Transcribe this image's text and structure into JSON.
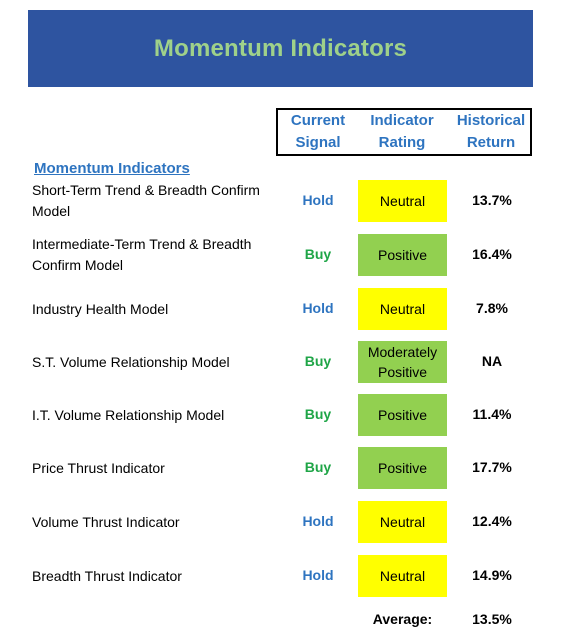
{
  "banner": {
    "title": "Momentum Indicators"
  },
  "headers": {
    "signal": [
      "Current",
      "Signal"
    ],
    "rating": [
      "Indicator",
      "Rating"
    ],
    "return": [
      "Historical",
      "Return"
    ]
  },
  "section_title": "Momentum Indicators",
  "rows": [
    {
      "name": "Short-Term Trend & Breadth Confirm Model",
      "signal": "Hold",
      "rating": "Neutral",
      "return": "13.7%"
    },
    {
      "name": "Intermediate-Term Trend & Breadth Confirm Model",
      "signal": "Buy",
      "rating": "Positive",
      "return": "16.4%"
    },
    {
      "name": "Industry Health Model",
      "signal": "Hold",
      "rating": "Neutral",
      "return": "7.8%"
    },
    {
      "name": "S.T. Volume Relationship Model",
      "signal": "Buy",
      "rating": "Moderately Positive",
      "return": "NA"
    },
    {
      "name": "I.T. Volume Relationship Model",
      "signal": "Buy",
      "rating": "Positive",
      "return": "11.4%"
    },
    {
      "name": "Price Thrust Indicator",
      "signal": "Buy",
      "rating": "Positive",
      "return": "17.7%"
    },
    {
      "name": "Volume Thrust Indicator",
      "signal": "Hold",
      "rating": "Neutral",
      "return": "12.4%"
    },
    {
      "name": "Breadth Thrust Indicator",
      "signal": "Hold",
      "rating": "Neutral",
      "return": "14.9%"
    }
  ],
  "average": {
    "label": "Average:",
    "value": "13.5%"
  },
  "colors": {
    "banner": "#2e54a0",
    "title": "#9fd18a",
    "hold": "#2e74c0",
    "buy": "#1fa547",
    "neutral": "#ffff00",
    "positive": "#92d050"
  }
}
